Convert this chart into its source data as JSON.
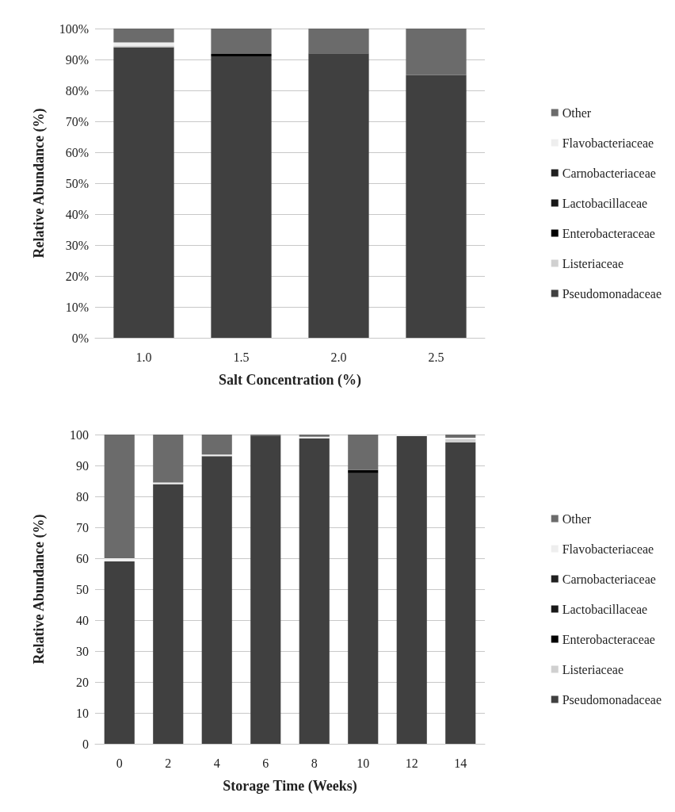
{
  "chart_data": [
    {
      "type": "bar",
      "stacked": true,
      "xlabel": "Salt Concentration (%)",
      "ylabel": "Relative Abundance (%)",
      "categories": [
        "1.0",
        "1.5",
        "2.0",
        "2.5"
      ],
      "ylim": [
        0,
        100
      ],
      "yticks": [
        {
          "value": 0,
          "label": "0%"
        },
        {
          "value": 10,
          "label": "10%"
        },
        {
          "value": 20,
          "label": "20%"
        },
        {
          "value": 30,
          "label": "30%"
        },
        {
          "value": 40,
          "label": "40%"
        },
        {
          "value": 50,
          "label": "50%"
        },
        {
          "value": 60,
          "label": "60%"
        },
        {
          "value": 70,
          "label": "70%"
        },
        {
          "value": 80,
          "label": "80%"
        },
        {
          "value": 90,
          "label": "90%"
        },
        {
          "value": 100,
          "label": "100%"
        }
      ],
      "grid": "y",
      "legend": "right",
      "series": [
        {
          "name": "Pseudomonadaceae",
          "color": "#404040",
          "values": [
            94,
            91,
            92,
            85
          ]
        },
        {
          "name": "Listeriaceae",
          "color": "#d0d0d0",
          "values": [
            0.5,
            0,
            0,
            0
          ]
        },
        {
          "name": "Enterobacteraceae",
          "color": "#000000",
          "values": [
            0,
            0.8,
            0,
            0
          ]
        },
        {
          "name": "Lactobacillaceae",
          "color": "#181818",
          "values": [
            0,
            0,
            0,
            0
          ]
        },
        {
          "name": "Carnobacteriaceae",
          "color": "#202020",
          "values": [
            0,
            0,
            0,
            0
          ]
        },
        {
          "name": "Flavobacteriaceae",
          "color": "#eeeeee",
          "values": [
            1,
            0,
            0,
            0
          ]
        },
        {
          "name": "Other",
          "color": "#6b6b6b",
          "values": [
            4.5,
            8.2,
            8,
            15
          ]
        }
      ]
    },
    {
      "type": "bar",
      "stacked": true,
      "xlabel": "Storage Time (Weeks)",
      "ylabel": "Relative Abundance (%)",
      "categories": [
        "0",
        "2",
        "4",
        "6",
        "8",
        "10",
        "12",
        "14"
      ],
      "ylim": [
        0,
        100
      ],
      "yticks": [
        0,
        10,
        20,
        30,
        40,
        50,
        60,
        70,
        80,
        90,
        100
      ],
      "grid": "y",
      "legend": "right",
      "series": [
        {
          "name": "Pseudomonadaceae",
          "color": "#404040",
          "values": [
            59,
            84,
            93,
            99.7,
            98.8,
            87.5,
            99.5,
            97.5
          ]
        },
        {
          "name": "Listeriaceae",
          "color": "#d0d0d0",
          "values": [
            0,
            0,
            0,
            0,
            0,
            0,
            0,
            1
          ]
        },
        {
          "name": "Enterobacteraceae",
          "color": "#000000",
          "values": [
            0,
            0,
            0,
            0,
            0,
            1,
            0,
            0
          ]
        },
        {
          "name": "Lactobacillaceae",
          "color": "#181818",
          "values": [
            0,
            0,
            0,
            0,
            0,
            0,
            0,
            0
          ]
        },
        {
          "name": "Carnobacteriaceae",
          "color": "#202020",
          "values": [
            0,
            0,
            0,
            0,
            0,
            0,
            0,
            0
          ]
        },
        {
          "name": "Flavobacteriaceae",
          "color": "#eeeeee",
          "values": [
            1,
            0.5,
            0.5,
            0,
            0.5,
            0,
            0.5,
            0.5
          ]
        },
        {
          "name": "Other",
          "color": "#6b6b6b",
          "values": [
            40,
            15.5,
            6.5,
            0.3,
            0.7,
            11.5,
            0,
            1
          ]
        }
      ]
    }
  ]
}
